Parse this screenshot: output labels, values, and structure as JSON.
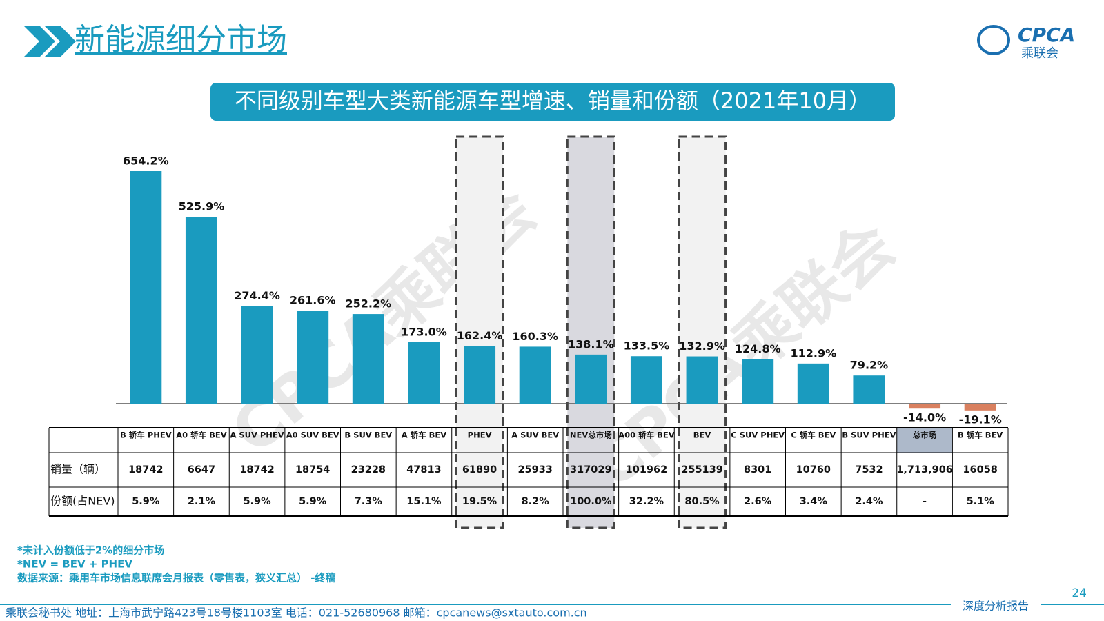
{
  "header": {
    "title": "新能源细分市场",
    "logo": "CPCA",
    "logo_sub": "乘联会"
  },
  "chart_data": {
    "type": "bar",
    "title": "不同级别车型大类新能源车型增速、销量和份额（2021年10月）",
    "categories": [
      "B 轿车 PHEV",
      "A0 轿车 BEV",
      "A SUV PHEV",
      "A0 SUV BEV",
      "B SUV BEV",
      "A 轿车 BEV",
      "PHEV",
      "A SUV BEV",
      "NEV总市场",
      "A00 轿车 BEV",
      "BEV",
      "C SUV PHEV",
      "C 轿车 BEV",
      "B SUV PHEV",
      "总市场",
      "B 轿车 BEV"
    ],
    "values": [
      654.2,
      525.9,
      274.4,
      261.6,
      252.2,
      173.0,
      162.4,
      160.3,
      138.1,
      133.5,
      132.9,
      124.8,
      112.9,
      79.2,
      -14.0,
      -19.1
    ],
    "value_labels": [
      "654.2%",
      "525.9%",
      "274.4%",
      "261.6%",
      "252.2%",
      "173.0%",
      "162.4%",
      "160.3%",
      "138.1%",
      "133.5%",
      "132.9%",
      "124.8%",
      "112.9%",
      "79.2%",
      "-14.0%",
      "-19.1%"
    ],
    "color": "#1a9bbf",
    "negative_color": "#d9805f",
    "highlight": [
      6,
      8,
      10
    ],
    "table": {
      "row_labels": [
        "销量（辆）",
        "份额(占NEV)"
      ],
      "rows": [
        [
          "18742",
          "6647",
          "18742",
          "18754",
          "23228",
          "47813",
          "61890",
          "25933",
          "317029",
          "101962",
          "255139",
          "8301",
          "10760",
          "7532",
          "1,713,906",
          "16058"
        ],
        [
          "5.9%",
          "2.1%",
          "5.9%",
          "5.9%",
          "7.3%",
          "15.1%",
          "19.5%",
          "8.2%",
          "100.0%",
          "32.2%",
          "80.5%",
          "2.6%",
          "3.4%",
          "2.4%",
          "-",
          "5.1%"
        ]
      ]
    }
  },
  "watermark": "CPCA乘联会",
  "notes": [
    "*未计入份额低于2%的细分市场",
    "*NEV = BEV + PHEV",
    "数据来源：乘用车市场信息联席会月报表（零售表，狭义汇总） -终稿"
  ],
  "footer": {
    "contact": "乘联会秘书处   地址：上海市武宁路423号18号楼1103室  电话：021-52680968   邮箱：cpcanews@sxtauto.com.cn",
    "report": "深度分析报告",
    "page": "24"
  }
}
